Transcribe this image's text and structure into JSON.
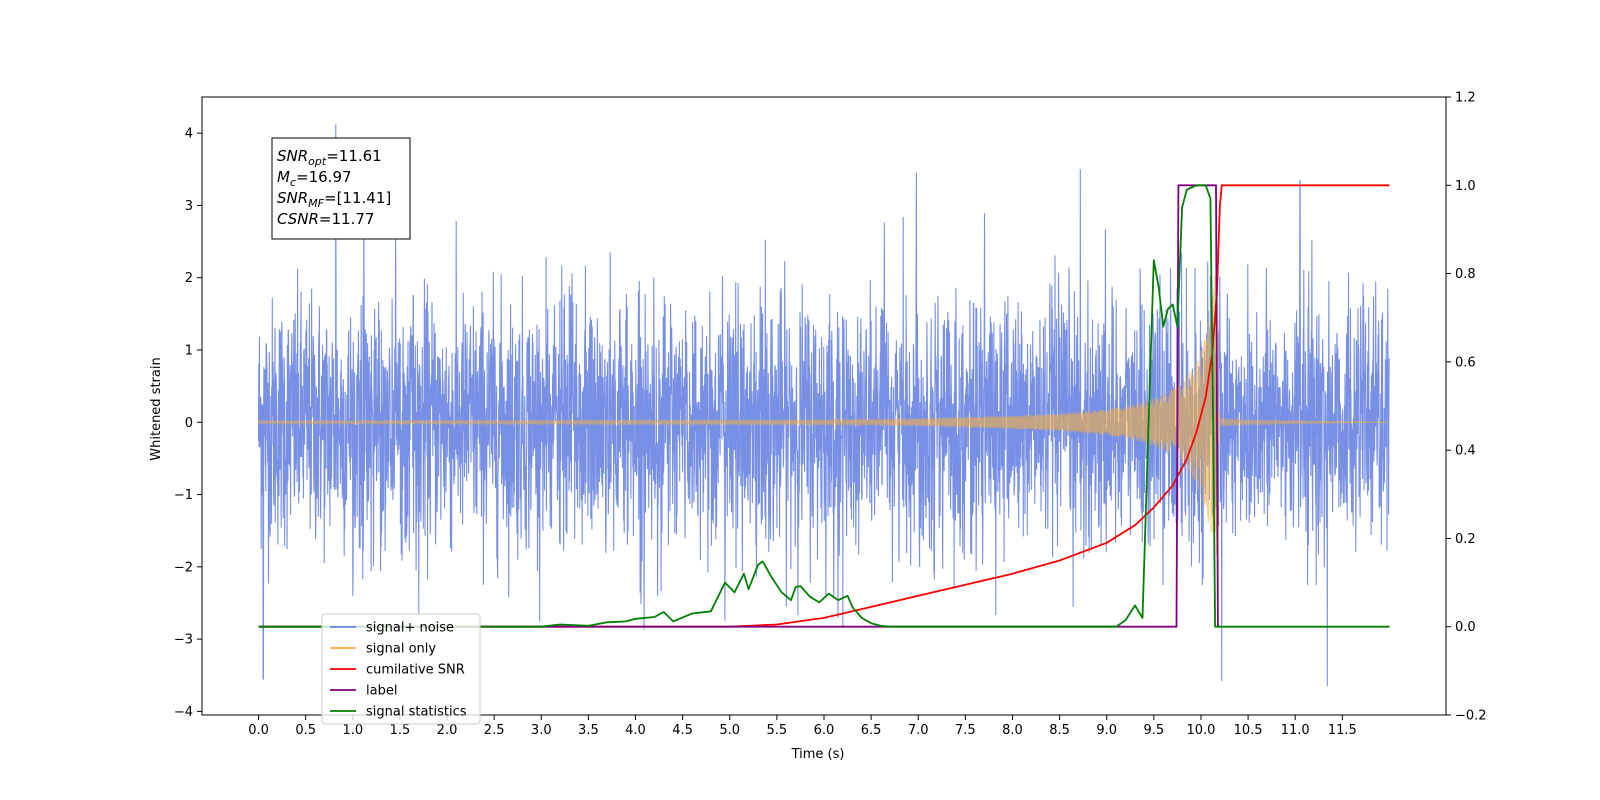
{
  "chart_data": {
    "type": "line",
    "xlabel": "Time (s)",
    "ylabel": "Whitened strain",
    "ylabel_right": "",
    "xlim": [
      -0.6,
      12.6
    ],
    "ylim": [
      -4.05,
      4.5
    ],
    "ylim_right": [
      -0.2,
      1.2
    ],
    "x_ticks": [
      0.0,
      0.5,
      1.0,
      1.5,
      2.0,
      2.5,
      3.0,
      3.5,
      4.0,
      4.5,
      5.0,
      5.5,
      6.0,
      6.5,
      7.0,
      7.5,
      8.0,
      8.5,
      9.0,
      9.5,
      10.0,
      10.5,
      11.0,
      11.5
    ],
    "x_tick_labels": [
      "0.0",
      "0.5",
      "1.0",
      "1.5",
      "2.0",
      "2.5",
      "3.0",
      "3.5",
      "4.0",
      "4.5",
      "5.0",
      "5.5",
      "6.0",
      "6.5",
      "7.0",
      "7.5",
      "8.0",
      "8.5",
      "9.0",
      "9.5",
      "10.0",
      "10.5",
      "11.0",
      "11.5"
    ],
    "y_ticks": [
      -4,
      -3,
      -2,
      -1,
      0,
      1,
      2,
      3,
      4
    ],
    "y_tick_labels": [
      "−4",
      "−3",
      "−2",
      "−1",
      "0",
      "1",
      "2",
      "3",
      "4"
    ],
    "y_right_ticks": [
      -0.2,
      0.0,
      0.2,
      0.4,
      0.6,
      0.8,
      1.0,
      1.2
    ],
    "y_right_tick_labels": [
      "−0.2",
      "0.0",
      "0.2",
      "0.4",
      "0.6",
      "0.8",
      "1.0",
      "1.2"
    ],
    "grid": false,
    "legend_position": "lower-left",
    "series": [
      {
        "name": "signal+ noise",
        "axis": "left",
        "color": "#6b87e4",
        "description_values": {
          "x_range": [
            0.0,
            12.0
          ],
          "typical_amplitude": 1.3,
          "envelope": [
            [
              0.0,
              2.2,
              -3.6
            ],
            [
              0.5,
              2.9,
              -3.0
            ],
            [
              0.8,
              4.1,
              -2.5
            ],
            [
              2.0,
              3.2,
              -2.8
            ],
            [
              4.5,
              2.9,
              -3.0
            ],
            [
              5.5,
              2.6,
              -3.3
            ],
            [
              7.0,
              3.4,
              -2.5
            ],
            [
              8.7,
              3.5,
              -2.9
            ],
            [
              9.0,
              2.7,
              -3.5
            ],
            [
              10.2,
              3.5,
              -3.6
            ],
            [
              11.1,
              3.3,
              -3.0
            ],
            [
              11.4,
              2.4,
              -3.6
            ],
            [
              12.0,
              1.9,
              -1.7
            ]
          ],
          "sample_peaks": [
            [
              0.82,
              4.12
            ],
            [
              0.05,
              -3.55
            ],
            [
              6.98,
              3.45
            ],
            [
              8.72,
              3.5
            ],
            [
              10.22,
              -3.58
            ],
            [
              11.34,
              -3.65
            ],
            [
              11.05,
              3.34
            ]
          ]
        }
      },
      {
        "name": "signal only",
        "axis": "left",
        "color": "#f5b041",
        "envelope": [
          [
            0.0,
            0.02
          ],
          [
            6.0,
            0.03
          ],
          [
            7.0,
            0.05
          ],
          [
            8.0,
            0.09
          ],
          [
            8.5,
            0.12
          ],
          [
            9.0,
            0.18
          ],
          [
            9.3,
            0.25
          ],
          [
            9.5,
            0.33
          ],
          [
            9.7,
            0.45
          ],
          [
            9.85,
            0.62
          ],
          [
            9.95,
            0.85
          ],
          [
            10.05,
            1.2
          ],
          [
            10.12,
            1.7
          ],
          [
            10.17,
            2.4
          ],
          [
            10.2,
            0.05
          ],
          [
            10.5,
            0.03
          ],
          [
            12.0,
            0.0
          ]
        ]
      },
      {
        "name": "cumilative SNR",
        "axis": "right",
        "color": "#ff0000",
        "x": [
          0.0,
          5.0,
          5.5,
          6.0,
          6.5,
          7.0,
          7.5,
          8.0,
          8.5,
          9.0,
          9.3,
          9.5,
          9.7,
          9.85,
          9.95,
          10.05,
          10.12,
          10.17,
          10.2,
          10.22,
          11.0,
          12.0
        ],
        "values": [
          0.0,
          0.0,
          0.005,
          0.02,
          0.045,
          0.07,
          0.095,
          0.12,
          0.15,
          0.19,
          0.23,
          0.27,
          0.32,
          0.38,
          0.44,
          0.52,
          0.62,
          0.76,
          0.95,
          1.0,
          1.0,
          1.0
        ]
      },
      {
        "name": "label",
        "axis": "right",
        "color": "#800080",
        "x": [
          0.0,
          6.5,
          9.74,
          9.76,
          10.16,
          10.18,
          10.2
        ],
        "values": [
          0.0,
          0.0,
          0.0,
          1.0,
          1.0,
          0.0,
          0.0
        ]
      },
      {
        "name": "signal statistics",
        "axis": "right",
        "color": "#008000",
        "x": [
          0.0,
          3.0,
          3.2,
          3.5,
          3.7,
          3.9,
          4.0,
          4.2,
          4.3,
          4.4,
          4.6,
          4.8,
          4.95,
          5.05,
          5.15,
          5.2,
          5.3,
          5.35,
          5.45,
          5.55,
          5.65,
          5.7,
          5.75,
          5.85,
          5.95,
          6.05,
          6.15,
          6.25,
          6.3,
          6.4,
          6.5,
          6.6,
          6.7,
          9.1,
          9.2,
          9.3,
          9.38,
          9.45,
          9.5,
          9.55,
          9.6,
          9.65,
          9.7,
          9.75,
          9.8,
          9.85,
          9.9,
          9.95,
          10.0,
          10.05,
          10.1,
          10.13,
          10.15,
          10.2,
          10.25,
          10.3,
          12.0
        ],
        "values": [
          0.0,
          0.0,
          0.005,
          0.002,
          0.01,
          0.012,
          0.018,
          0.022,
          0.033,
          0.012,
          0.03,
          0.035,
          0.1,
          0.078,
          0.12,
          0.085,
          0.14,
          0.148,
          0.11,
          0.078,
          0.06,
          0.09,
          0.092,
          0.068,
          0.055,
          0.075,
          0.06,
          0.07,
          0.045,
          0.02,
          0.008,
          0.002,
          0.0,
          0.0,
          0.015,
          0.048,
          0.02,
          0.5,
          0.83,
          0.77,
          0.68,
          0.72,
          0.73,
          0.68,
          0.95,
          0.99,
          0.995,
          1.0,
          1.0,
          1.0,
          0.97,
          0.45,
          0.0,
          0.0,
          0.0,
          0.0,
          0.0
        ]
      }
    ],
    "annotation": {
      "lines": [
        {
          "base": "SNR",
          "sub": "opt",
          "value": "=11.61"
        },
        {
          "base": "M",
          "sub": "c",
          "value": "=16.97"
        },
        {
          "base": "SNR",
          "sub": "MF",
          "value": "=[11.41]"
        },
        {
          "base": "CSNR",
          "sub": "",
          "value": "=11.77"
        }
      ]
    },
    "legend": [
      {
        "label": "signal+ noise",
        "color": "#6b87e4"
      },
      {
        "label": "signal only",
        "color": "#f5b041"
      },
      {
        "label": "cumilative SNR",
        "color": "#ff0000"
      },
      {
        "label": "label",
        "color": "#800080"
      },
      {
        "label": "signal statistics",
        "color": "#008000"
      }
    ]
  }
}
